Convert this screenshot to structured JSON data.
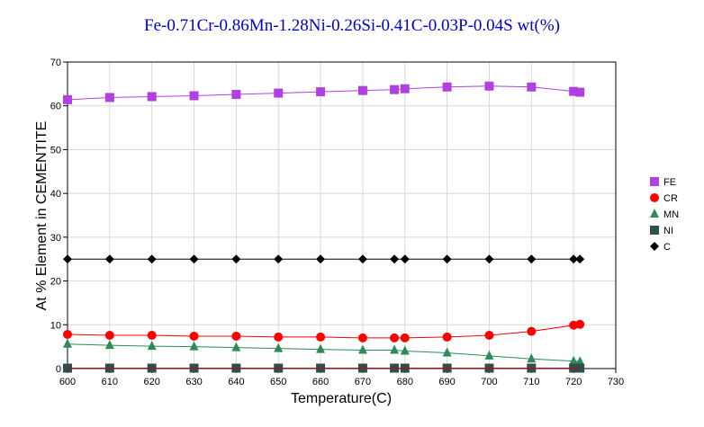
{
  "chart_data": {
    "type": "line",
    "title": "Fe-0.71Cr-0.86Mn-1.28Ni-0.26Si-0.41C-0.03P-0.04S wt(%)",
    "xlabel": "Temperature(C)",
    "ylabel": "At %  Element in CEMENTITE",
    "xlim": [
      600,
      730
    ],
    "ylim": [
      0,
      70
    ],
    "xticks": [
      600,
      610,
      620,
      630,
      640,
      650,
      660,
      670,
      680,
      690,
      700,
      710,
      720,
      730
    ],
    "yticks": [
      0,
      10,
      20,
      30,
      40,
      50,
      60,
      70
    ],
    "grid": true,
    "legend_position": "right",
    "x": [
      600,
      610,
      620,
      630,
      640,
      650,
      660,
      670,
      677.5,
      680,
      690,
      700,
      710,
      720,
      721.5
    ],
    "series": [
      {
        "name": "FE",
        "color": "#b040e0",
        "marker": "square",
        "values": [
          61.4,
          61.9,
          62.1,
          62.3,
          62.6,
          62.9,
          63.2,
          63.5,
          63.7,
          63.9,
          64.3,
          64.5,
          64.3,
          63.3,
          63.1
        ]
      },
      {
        "name": "CR",
        "color": "#ff0000",
        "marker": "circle",
        "values": [
          7.8,
          7.6,
          7.6,
          7.4,
          7.4,
          7.2,
          7.2,
          7.0,
          7.0,
          7.0,
          7.2,
          7.6,
          8.5,
          9.9,
          10.1
        ]
      },
      {
        "name": "MN",
        "color": "#2e8b57",
        "marker": "triangle",
        "values": [
          5.6,
          5.3,
          5.1,
          5.0,
          4.8,
          4.6,
          4.4,
          4.2,
          4.2,
          4.0,
          3.6,
          2.9,
          2.2,
          1.7,
          1.6
        ]
      },
      {
        "name": "NI",
        "color": "#2f4f4f",
        "marker": "square",
        "values": [
          0.1,
          0.1,
          0.1,
          0.1,
          0.1,
          0.1,
          0.1,
          0.1,
          0.1,
          0.1,
          0.1,
          0.1,
          0.1,
          0.1,
          0.1
        ]
      },
      {
        "name": "C",
        "color": "#000000",
        "marker": "diamond",
        "values": [
          25.0,
          25.0,
          25.0,
          25.0,
          25.0,
          25.0,
          25.0,
          25.0,
          25.0,
          25.0,
          25.0,
          25.0,
          25.0,
          25.0,
          25.0
        ]
      },
      {
        "color": "#cc0000",
        "marker": "none",
        "values": [
          0.05,
          0.05,
          0.05,
          0.05,
          0.05,
          0.05,
          0.05,
          0.05,
          0.05,
          0.05,
          0.05,
          0.05,
          0.05,
          0.05,
          0.05
        ]
      }
    ]
  }
}
